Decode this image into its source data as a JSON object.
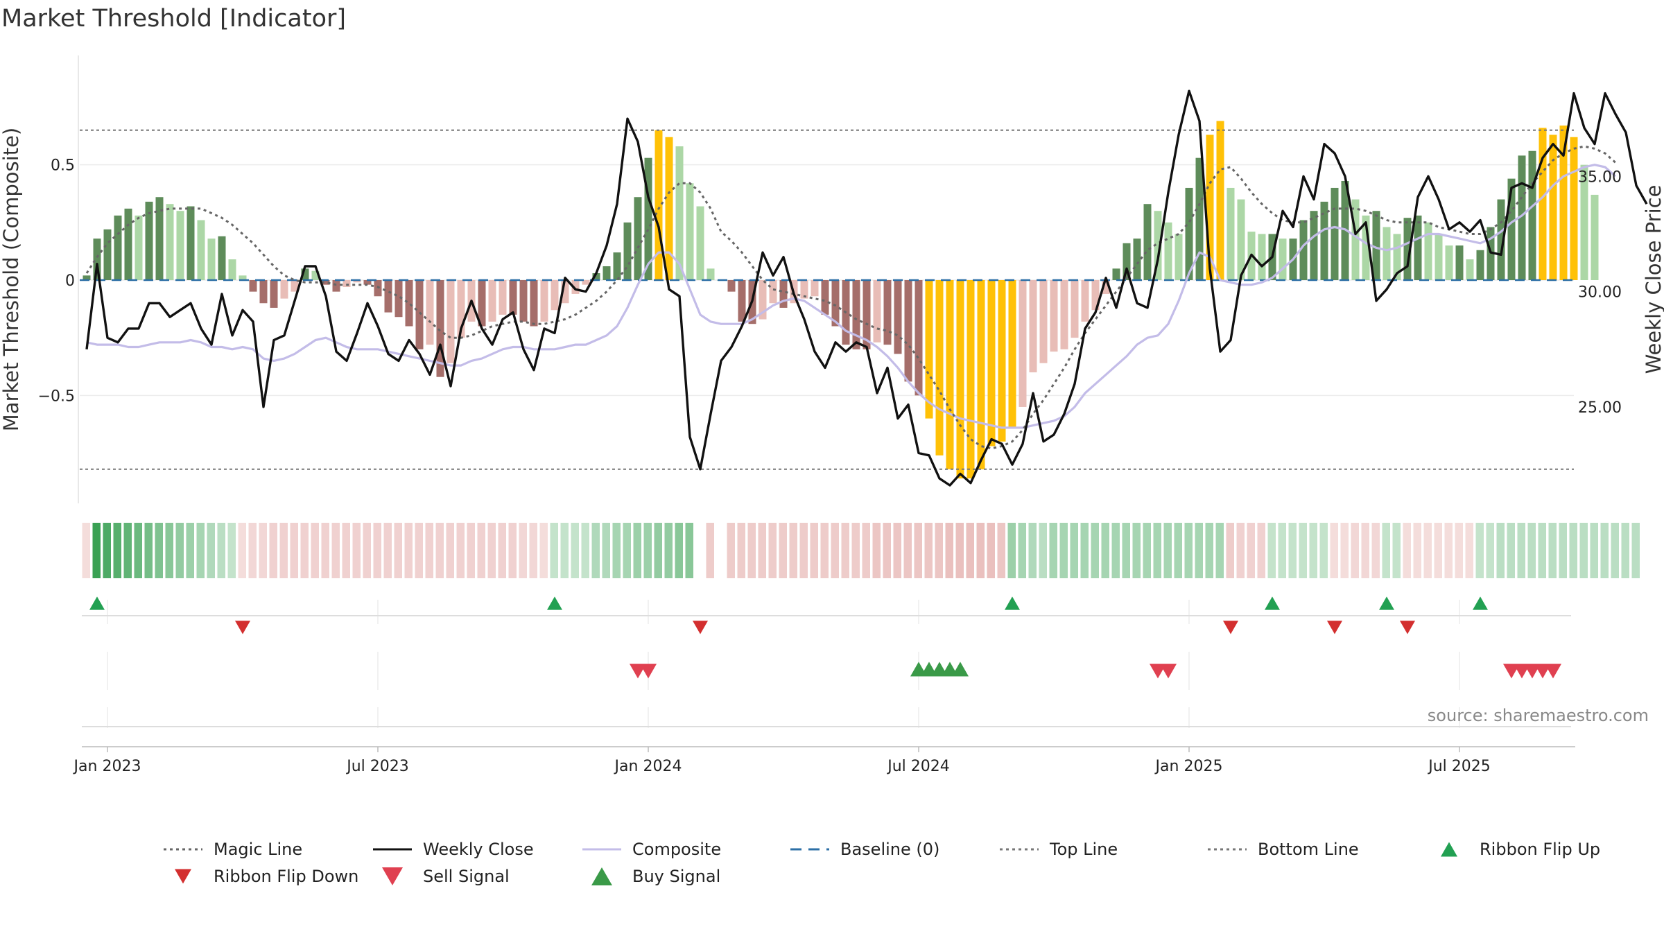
{
  "chart_data": {
    "type": "bar",
    "title": "Market Threshold [Indicator]",
    "ylabel": "Market Threshold (Composite)",
    "ylabel_right": "Weekly Close Price",
    "ylim": [
      -0.95,
      0.95
    ],
    "ylim_right": [
      21,
      40
    ],
    "y_ticks": [
      {
        "value": 0.5,
        "label": "0.5"
      },
      {
        "value": 0,
        "label": "0"
      },
      {
        "value": -0.5,
        "label": "−0.5"
      }
    ],
    "y_ticks_right": [
      {
        "value": 35,
        "label": "35.00"
      },
      {
        "value": 30,
        "label": "30.00"
      },
      {
        "value": 25,
        "label": "25.00"
      }
    ],
    "x_ticks": [
      {
        "week": 2,
        "label": "Jan 2023"
      },
      {
        "week": 28,
        "label": "Jul 2023"
      },
      {
        "week": 54,
        "label": "Jan 2024"
      },
      {
        "week": 80,
        "label": "Jul 2024"
      },
      {
        "week": 106,
        "label": "Jan 2025"
      },
      {
        "week": 132,
        "label": "Jul 2025"
      }
    ],
    "top_line": 0.65,
    "bottom_line": -0.82,
    "composite_values": [
      0.02,
      0.18,
      0.22,
      0.28,
      0.31,
      0.28,
      0.34,
      0.36,
      0.33,
      0.3,
      0.32,
      0.26,
      0.18,
      0.19,
      0.09,
      0.02,
      -0.05,
      -0.1,
      -0.12,
      -0.08,
      -0.05,
      0.05,
      0.04,
      -0.02,
      -0.05,
      -0.03,
      -0.01,
      -0.02,
      -0.07,
      -0.14,
      -0.16,
      -0.2,
      -0.3,
      -0.28,
      -0.42,
      -0.36,
      -0.25,
      -0.18,
      -0.2,
      -0.18,
      -0.15,
      -0.15,
      -0.18,
      -0.2,
      -0.18,
      -0.13,
      -0.1,
      -0.06,
      -0.02,
      0.03,
      0.06,
      0.12,
      0.25,
      0.36,
      0.53,
      0.65,
      0.62,
      0.58,
      0.42,
      0.32,
      0.05,
      0.0,
      -0.05,
      -0.18,
      -0.19,
      -0.17,
      -0.1,
      -0.12,
      -0.1,
      -0.08,
      -0.07,
      -0.15,
      -0.2,
      -0.28,
      -0.3,
      -0.3,
      -0.27,
      -0.28,
      -0.32,
      -0.44,
      -0.5,
      -0.6,
      -0.76,
      -0.82,
      -0.86,
      -0.86,
      -0.82,
      -0.72,
      -0.7,
      -0.64,
      -0.55,
      -0.4,
      -0.36,
      -0.31,
      -0.3,
      -0.25,
      -0.18,
      -0.13,
      -0.06,
      0.05,
      0.16,
      0.18,
      0.33,
      0.3,
      0.25,
      0.2,
      0.4,
      0.53,
      0.63,
      0.69,
      0.4,
      0.35,
      0.21,
      0.2,
      0.2,
      0.18,
      0.18,
      0.26,
      0.3,
      0.34,
      0.4,
      0.43,
      0.35,
      0.28,
      0.3,
      0.23,
      0.2,
      0.27,
      0.28,
      0.25,
      0.2,
      0.15,
      0.15,
      0.09,
      0.13,
      0.23,
      0.35,
      0.44,
      0.54,
      0.56,
      0.66,
      0.63,
      0.67,
      0.62,
      0.5,
      0.37
    ],
    "weekly_close_values": [
      27.5,
      31.2,
      28.0,
      27.8,
      28.4,
      28.4,
      29.5,
      29.5,
      28.9,
      29.2,
      29.5,
      28.4,
      27.7,
      29.9,
      28.1,
      29.2,
      28.7,
      25.0,
      27.9,
      28.1,
      29.6,
      31.1,
      31.1,
      29.8,
      27.4,
      27.0,
      28.2,
      29.5,
      28.5,
      27.3,
      27.0,
      27.9,
      27.3,
      26.4,
      27.7,
      25.9,
      28.4,
      29.6,
      28.4,
      27.7,
      28.8,
      29.1,
      27.5,
      26.6,
      28.4,
      28.2,
      30.6,
      30.1,
      30.0,
      30.8,
      32.0,
      33.8,
      37.5,
      36.5,
      34.1,
      32.8,
      30.1,
      29.8,
      23.7,
      22.3,
      24.7,
      27.0,
      27.6,
      28.5,
      29.6,
      31.7,
      30.7,
      31.5,
      29.9,
      28.8,
      27.4,
      26.7,
      27.8,
      27.4,
      27.8,
      27.6,
      25.6,
      26.7,
      24.5,
      25.1,
      23.0,
      22.9,
      21.9,
      21.6,
      22.1,
      21.7,
      22.7,
      23.6,
      23.4,
      22.5,
      23.4,
      25.6,
      23.5,
      23.8,
      24.7,
      26.0,
      28.4,
      29.1,
      30.6,
      29.3,
      31.0,
      29.5,
      29.3,
      31.4,
      34.3,
      36.8,
      38.7,
      37.4,
      31.0,
      27.4,
      27.9,
      30.7,
      31.6,
      31.1,
      31.5,
      33.5,
      32.8,
      35.0,
      34.0,
      36.4,
      36.0,
      35.0,
      32.5,
      33.0,
      29.6,
      30.1,
      30.8,
      31.1,
      34.1,
      35.0,
      34.0,
      32.7,
      33.0,
      32.6,
      33.1,
      31.7,
      31.6,
      34.5,
      34.7,
      34.5,
      35.8,
      36.4,
      35.9,
      38.6,
      37.1,
      36.4,
      38.6,
      37.7,
      36.9,
      34.6,
      33.8
    ],
    "composite_line_values": [
      27.8,
      27.7,
      27.7,
      27.7,
      27.6,
      27.6,
      27.7,
      27.8,
      27.8,
      27.8,
      27.9,
      27.8,
      27.6,
      27.6,
      27.5,
      27.6,
      27.5,
      27.1,
      27.0,
      27.1,
      27.3,
      27.6,
      27.9,
      28.0,
      27.8,
      27.6,
      27.5,
      27.5,
      27.5,
      27.4,
      27.3,
      27.2,
      27.1,
      27.0,
      26.9,
      26.8,
      26.8,
      27.0,
      27.1,
      27.3,
      27.5,
      27.6,
      27.6,
      27.5,
      27.5,
      27.5,
      27.6,
      27.7,
      27.7,
      27.9,
      28.1,
      28.5,
      29.3,
      30.3,
      31.2,
      31.7,
      31.7,
      31.2,
      30.1,
      29.0,
      28.7,
      28.6,
      28.6,
      28.6,
      28.8,
      29.1,
      29.4,
      29.6,
      29.7,
      29.6,
      29.3,
      29.0,
      28.7,
      28.3,
      28.1,
      27.9,
      27.6,
      27.2,
      26.7,
      26.1,
      25.6,
      25.2,
      24.9,
      24.7,
      24.5,
      24.4,
      24.3,
      24.2,
      24.1,
      24.1,
      24.1,
      24.2,
      24.3,
      24.4,
      24.6,
      25.0,
      25.6,
      26.0,
      26.4,
      26.8,
      27.2,
      27.7,
      28.0,
      28.1,
      28.6,
      29.6,
      30.8,
      31.7,
      31.5,
      30.5,
      30.4,
      30.3,
      30.3,
      30.4,
      30.6,
      31.0,
      31.4,
      32.0,
      32.4,
      32.7,
      32.8,
      32.7,
      32.4,
      32.1,
      31.9,
      31.8,
      31.9,
      32.1,
      32.3,
      32.5,
      32.5,
      32.4,
      32.3,
      32.2,
      32.1,
      32.3,
      32.6,
      33.0,
      33.3,
      33.7,
      34.1,
      34.6,
      35.0,
      35.2,
      35.4,
      35.5,
      35.4,
      35.0
    ],
    "magic_line_values": [
      0.03,
      0.1,
      0.16,
      0.2,
      0.24,
      0.27,
      0.29,
      0.3,
      0.31,
      0.31,
      0.31,
      0.31,
      0.29,
      0.27,
      0.24,
      0.2,
      0.16,
      0.11,
      0.06,
      0.02,
      0.0,
      -0.01,
      -0.01,
      -0.01,
      -0.02,
      -0.02,
      -0.02,
      -0.02,
      -0.03,
      -0.05,
      -0.07,
      -0.1,
      -0.14,
      -0.18,
      -0.22,
      -0.25,
      -0.25,
      -0.24,
      -0.22,
      -0.2,
      -0.19,
      -0.18,
      -0.18,
      -0.19,
      -0.19,
      -0.18,
      -0.17,
      -0.15,
      -0.12,
      -0.09,
      -0.05,
      0.0,
      0.06,
      0.14,
      0.22,
      0.31,
      0.38,
      0.42,
      0.42,
      0.38,
      0.31,
      0.21,
      0.17,
      0.12,
      0.06,
      0.0,
      -0.04,
      -0.05,
      -0.06,
      -0.07,
      -0.08,
      -0.09,
      -0.11,
      -0.14,
      -0.17,
      -0.19,
      -0.21,
      -0.22,
      -0.24,
      -0.28,
      -0.34,
      -0.41,
      -0.48,
      -0.56,
      -0.63,
      -0.69,
      -0.72,
      -0.73,
      -0.72,
      -0.7,
      -0.65,
      -0.58,
      -0.52,
      -0.45,
      -0.38,
      -0.3,
      -0.23,
      -0.17,
      -0.11,
      -0.05,
      0.01,
      0.07,
      0.13,
      0.16,
      0.18,
      0.2,
      0.25,
      0.33,
      0.42,
      0.48,
      0.49,
      0.44,
      0.38,
      0.33,
      0.29,
      0.26,
      0.25,
      0.25,
      0.27,
      0.29,
      0.31,
      0.31,
      0.31,
      0.3,
      0.28,
      0.26,
      0.25,
      0.25,
      0.25,
      0.25,
      0.23,
      0.22,
      0.21,
      0.2,
      0.2,
      0.22,
      0.25,
      0.3,
      0.36,
      0.42,
      0.47,
      0.52,
      0.55,
      0.57,
      0.58,
      0.57,
      0.55,
      0.51
    ],
    "ribbon_values": [
      0.3,
      1.0,
      0.9,
      0.85,
      0.8,
      0.75,
      0.7,
      0.65,
      0.6,
      0.55,
      0.5,
      0.45,
      0.4,
      0.35,
      0.3,
      0.3,
      0.35,
      0.35,
      0.4,
      0.4,
      0.4,
      0.4,
      0.4,
      0.4,
      0.4,
      0.4,
      0.4,
      0.4,
      0.4,
      0.4,
      0.4,
      0.4,
      0.4,
      0.4,
      0.4,
      0.4,
      0.4,
      0.4,
      0.4,
      0.4,
      0.4,
      0.4,
      0.35,
      0.35,
      0.3,
      0.3,
      0.3,
      0.3,
      0.3,
      0.4,
      0.4,
      0.45,
      0.45,
      0.5,
      0.5,
      0.55,
      0.55,
      0.6,
      0.6,
      null,
      0.45,
      null,
      0.45,
      0.45,
      0.45,
      0.45,
      0.45,
      0.45,
      0.45,
      0.45,
      0.45,
      0.45,
      0.45,
      0.45,
      0.45,
      0.45,
      0.5,
      0.5,
      0.5,
      0.5,
      0.5,
      0.5,
      0.5,
      0.55,
      0.55,
      0.55,
      0.55,
      0.55,
      0.5,
      0.5,
      0.45,
      0.4,
      0.35,
      0.45,
      0.45,
      0.45,
      0.45,
      0.45,
      0.45,
      0.45,
      0.45,
      0.45,
      0.45,
      0.45,
      0.45,
      0.45,
      0.45,
      0.45,
      0.45,
      0.45,
      0.45,
      0.4,
      0.4,
      0.4,
      0.3,
      0.3,
      0.3,
      0.3,
      0.3,
      0.3,
      0.3,
      0.3,
      0.35,
      0.35,
      0.35,
      0.3,
      0.3,
      0.3,
      0.3,
      0.3,
      0.3,
      0.3,
      0.3,
      0.3,
      0.3,
      0.3,
      0.35,
      0.35,
      0.35,
      0.35,
      0.35,
      0.35,
      0.35,
      0.35,
      0.35,
      0.35,
      0.35,
      0.35,
      0.35,
      0.35
    ],
    "ribbon_flip_up_weeks": [
      1,
      45,
      89,
      114,
      125,
      134
    ],
    "ribbon_flip_down_weeks": [
      15,
      59,
      110,
      120,
      127
    ],
    "sell_signal_weeks": [
      53,
      54,
      103,
      104,
      137,
      138,
      139,
      140,
      141
    ],
    "buy_signal_weeks": [
      80,
      81,
      82,
      83,
      84
    ],
    "legend": [
      {
        "label": "Magic Line",
        "kind": "line",
        "color": "#666666",
        "dash": "dot"
      },
      {
        "label": "Weekly Close",
        "kind": "line",
        "color": "#111111",
        "dash": "solid"
      },
      {
        "label": "Composite",
        "kind": "line",
        "color": "#c3bce8",
        "dash": "solid"
      },
      {
        "label": "Baseline (0)",
        "kind": "line",
        "color": "#2c6fa6",
        "dash": "dash"
      },
      {
        "label": "Top Line",
        "kind": "line",
        "color": "#777777",
        "dash": "dot"
      },
      {
        "label": "Bottom Line",
        "kind": "line",
        "color": "#777777",
        "dash": "dot"
      },
      {
        "label": "Ribbon Flip Up",
        "kind": "tri-up",
        "color": "#22a052"
      },
      {
        "label": "Ribbon Flip Down",
        "kind": "tri-down",
        "color": "#d32f2f"
      },
      {
        "label": "Sell Signal",
        "kind": "tri-down",
        "color": "#e04050"
      },
      {
        "label": "Buy Signal",
        "kind": "tri-up",
        "color": "#3a9a48"
      }
    ],
    "colors": {
      "bar_strong_up": "#5e8c5a",
      "bar_weak_up": "#acd7a6",
      "bar_strong_down": "#a56e6a",
      "bar_weak_down": "#e8bdb7",
      "bar_extreme": "#ffc107",
      "ribbon_up": "#3aa154",
      "ribbon_down": "#d98d89"
    }
  },
  "source_text": "source: sharemaestro.com"
}
